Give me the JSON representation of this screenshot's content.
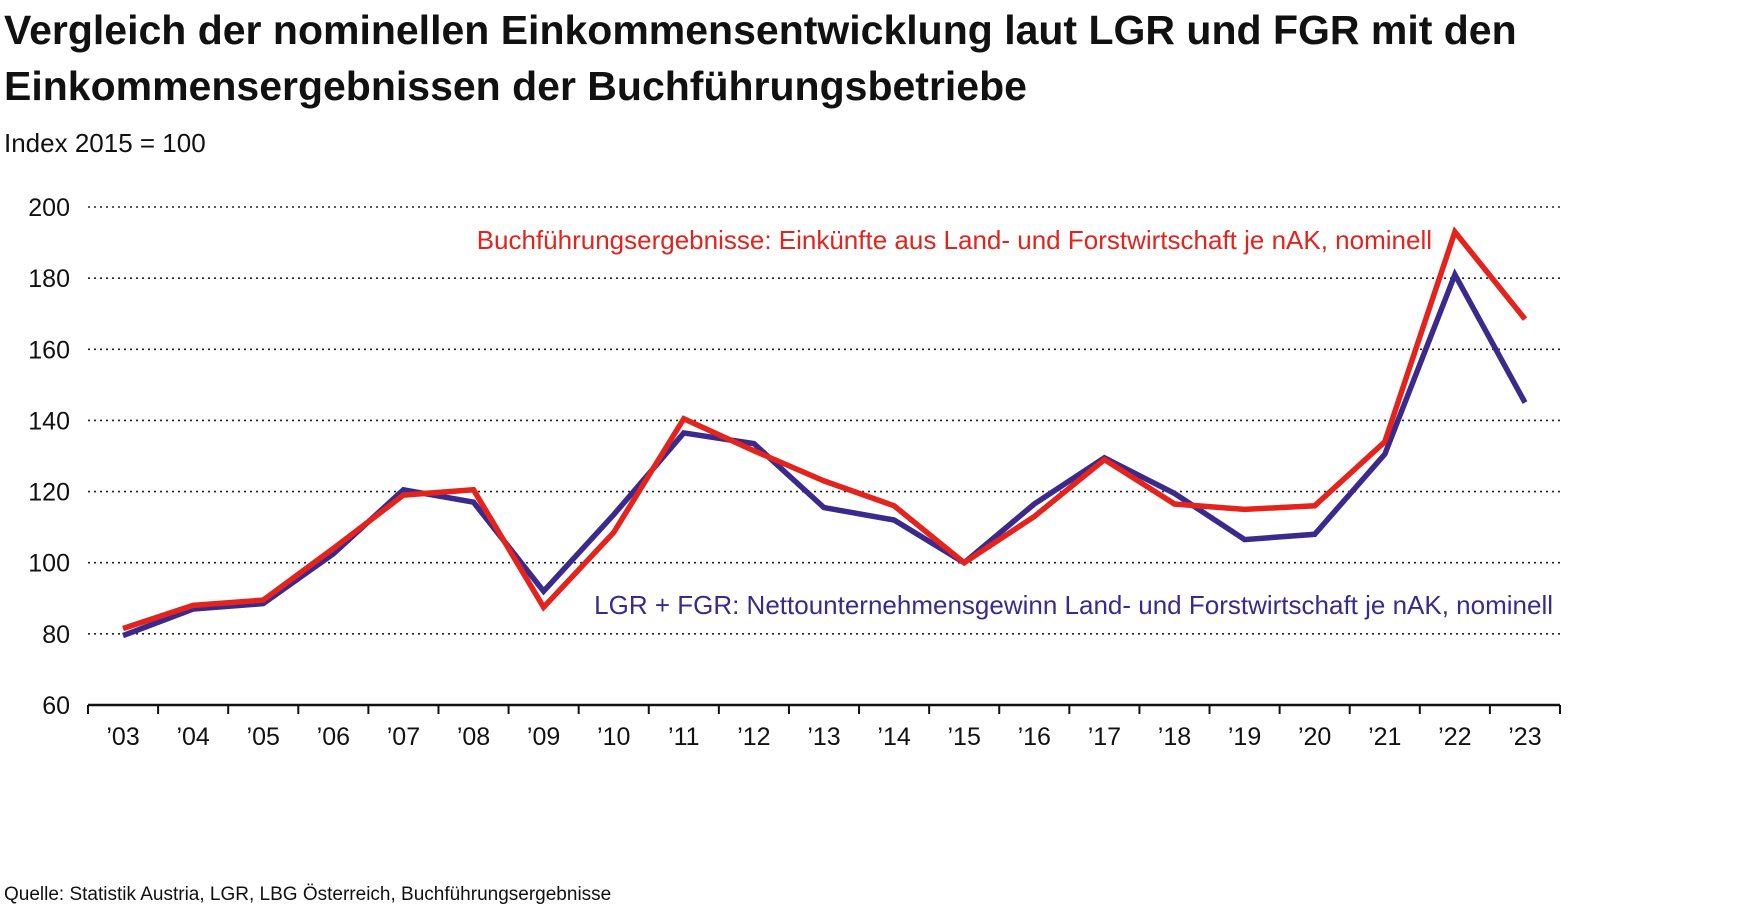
{
  "title": "Vergleich der nominellen Einkommensentwicklung laut LGR und FGR mit den Einkommensergebnissen der Buchführungsbetriebe",
  "subtitle": "Index 2015 = 100",
  "source": "Quelle: Statistik Austria, LGR, LBG Österreich, Buchführungsergebnisse",
  "chart_data": {
    "type": "line",
    "categories": [
      "’03",
      "’04",
      "’05",
      "’06",
      "’07",
      "’08",
      "’09",
      "’10",
      "’11",
      "’12",
      "’13",
      "’14",
      "’15",
      "’16",
      "’17",
      "’18",
      "’19",
      "’20",
      "’21",
      "’22",
      "’23"
    ],
    "ylim": [
      60,
      200
    ],
    "yticks": [
      60,
      80,
      100,
      120,
      140,
      160,
      180,
      200
    ],
    "grid": true,
    "series": [
      {
        "name": "Buchführungsergebnisse: Einkünfte aus Land- und Forstwirtschaft je nAK, nominell",
        "color": "#e3231c",
        "values": [
          81.5,
          88,
          89.5,
          104,
          119,
          120.5,
          87.5,
          108.5,
          140.5,
          131.5,
          123,
          116,
          100,
          113,
          129,
          116.5,
          115,
          116,
          134,
          193,
          168.5
        ]
      },
      {
        "name": "LGR + FGR: Nettounternehmensgewinn Land- und Forstwirtschaft je nAK, nominell",
        "color": "#3b2a8c",
        "values": [
          79.5,
          87,
          88.5,
          102.5,
          120.5,
          117,
          92,
          113.5,
          136.5,
          133.5,
          115.5,
          112,
          100,
          116.5,
          129.5,
          119.5,
          106.5,
          108,
          130.5,
          181,
          145
        ]
      }
    ]
  }
}
